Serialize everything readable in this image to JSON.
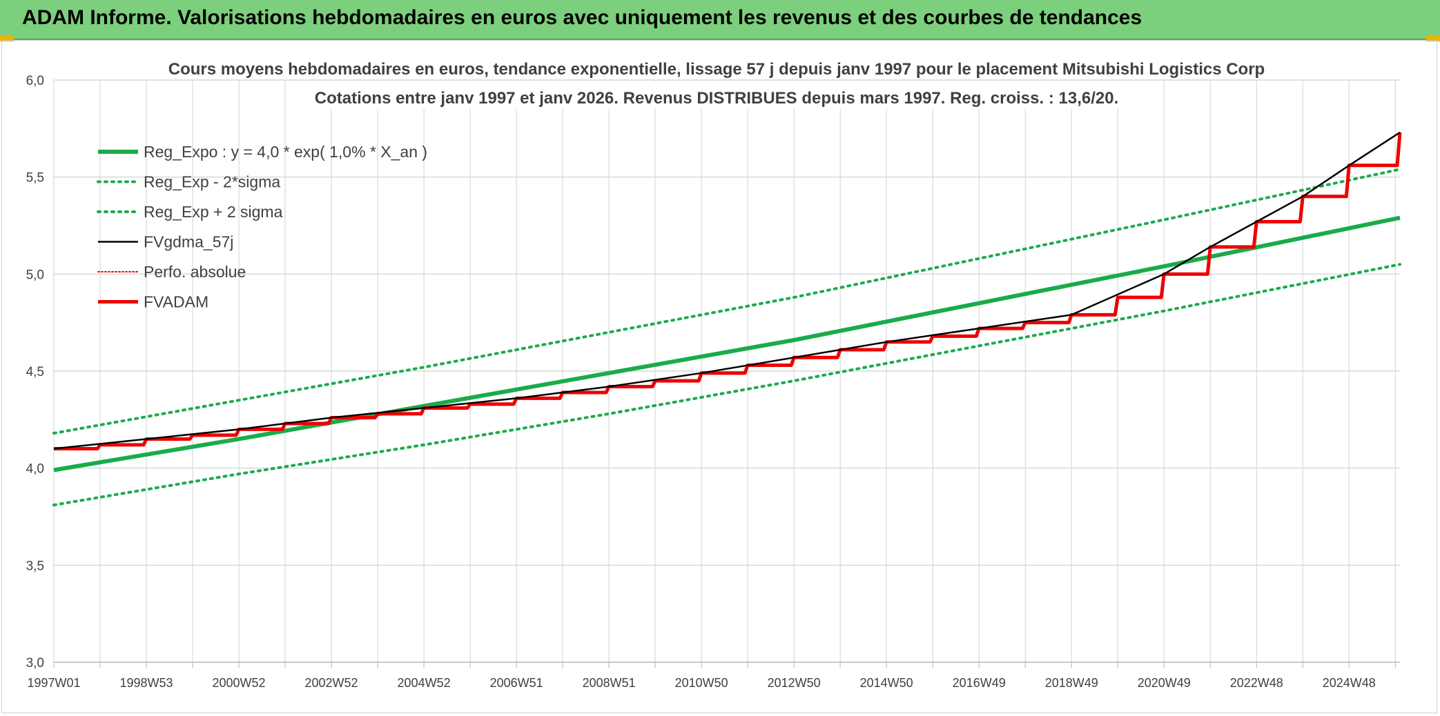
{
  "banner": {
    "title": "ADAM Informe. Valorisations hebdomadaires en euros avec uniquement les revenus et des courbes de tendances"
  },
  "colors": {
    "banner_bg": "#7ccf7c",
    "green": "#1aab4b",
    "red": "#ee0000",
    "black": "#000000",
    "grid": "#d9d9d9",
    "text": "#404040",
    "title": "#404040"
  },
  "chart_data": {
    "type": "line",
    "title_line1": "Cours moyens hebdomadaires en euros, tendance exponentielle, lissage 57 j depuis janv 1997 pour le placement Mitsubishi Logistics Corp",
    "title_line2": "Cotations entre janv 1997 et janv 2026. Revenus DISTRIBUES depuis mars 1997. Reg. croiss. : 13,6/20.",
    "xlabel": "",
    "ylabel": "",
    "ylim": [
      3.0,
      6.0
    ],
    "y_ticks": [
      "3,0",
      "3,5",
      "4,0",
      "4,5",
      "5,0",
      "5,5",
      "6,0"
    ],
    "x_range": [
      1997.0,
      2026.1
    ],
    "x_ticks": [
      {
        "label": "1997W01",
        "x": 1997.0
      },
      {
        "label": "1998W53",
        "x": 1999.0
      },
      {
        "label": "2000W52",
        "x": 2001.0
      },
      {
        "label": "2002W52",
        "x": 2003.0
      },
      {
        "label": "2004W52",
        "x": 2005.0
      },
      {
        "label": "2006W51",
        "x": 2007.0
      },
      {
        "label": "2008W51",
        "x": 2009.0
      },
      {
        "label": "2010W50",
        "x": 2011.0
      },
      {
        "label": "2012W50",
        "x": 2013.0
      },
      {
        "label": "2014W50",
        "x": 2015.0
      },
      {
        "label": "2016W49",
        "x": 2017.0
      },
      {
        "label": "2018W49",
        "x": 2019.0
      },
      {
        "label": "2020W49",
        "x": 2021.0
      },
      {
        "label": "2022W48",
        "x": 2023.0
      },
      {
        "label": "2024W48",
        "x": 2025.0
      }
    ],
    "grid": true,
    "legend_position": "top-left",
    "series": [
      {
        "name": "Reg_Expo : y = 4,0 * exp( 1,0% *  X_an )",
        "style": "solid-thick",
        "color": "#1aab4b",
        "x": [
          1997.0,
          2001.0,
          2005.0,
          2009.0,
          2013.0,
          2017.0,
          2021.0,
          2026.1
        ],
        "y": [
          3.99,
          4.15,
          4.32,
          4.49,
          4.66,
          4.85,
          5.04,
          5.29
        ]
      },
      {
        "name": "Reg_Exp - 2*sigma",
        "style": "dotted",
        "color": "#1aab4b",
        "x": [
          1997.0,
          2001.0,
          2005.0,
          2009.0,
          2013.0,
          2017.0,
          2021.0,
          2026.1
        ],
        "y": [
          3.81,
          3.97,
          4.12,
          4.28,
          4.45,
          4.63,
          4.81,
          5.05
        ]
      },
      {
        "name": "Reg_Exp + 2 sigma",
        "style": "dotted",
        "color": "#1aab4b",
        "x": [
          1997.0,
          2001.0,
          2005.0,
          2009.0,
          2013.0,
          2017.0,
          2021.0,
          2026.1
        ],
        "y": [
          4.18,
          4.35,
          4.52,
          4.7,
          4.88,
          5.08,
          5.28,
          5.54
        ]
      },
      {
        "name": "FVgdma_57j",
        "style": "solid-thin",
        "color": "#000000",
        "x": [
          1997.0,
          1999.0,
          2001.0,
          2003.0,
          2005.0,
          2007.0,
          2009.0,
          2011.0,
          2013.0,
          2015.0,
          2017.0,
          2019.0,
          2021.0,
          2022.0,
          2023.0,
          2024.0,
          2025.0,
          2026.1
        ],
        "y": [
          4.1,
          4.15,
          4.2,
          4.26,
          4.31,
          4.36,
          4.42,
          4.49,
          4.57,
          4.65,
          4.72,
          4.79,
          5.0,
          5.14,
          5.27,
          5.4,
          5.56,
          5.73
        ]
      },
      {
        "name": "Perfo. absolue",
        "style": "dotted-thin",
        "color": "#ee0000",
        "x": [],
        "y": []
      },
      {
        "name": "FVADAM",
        "style": "step",
        "color": "#ee0000",
        "x": [
          1997.0,
          1998.0,
          1999.0,
          2000.0,
          2001.0,
          2002.0,
          2003.0,
          2004.0,
          2005.0,
          2006.0,
          2007.0,
          2008.0,
          2009.0,
          2010.0,
          2011.0,
          2012.0,
          2013.0,
          2014.0,
          2015.0,
          2016.0,
          2017.0,
          2018.0,
          2019.0,
          2020.0,
          2021.0,
          2022.0,
          2023.0,
          2024.0,
          2025.0,
          2026.1
        ],
        "y": [
          4.1,
          4.12,
          4.15,
          4.17,
          4.2,
          4.23,
          4.26,
          4.28,
          4.31,
          4.33,
          4.36,
          4.39,
          4.42,
          4.45,
          4.49,
          4.53,
          4.57,
          4.61,
          4.65,
          4.68,
          4.72,
          4.75,
          4.79,
          4.88,
          5.0,
          5.14,
          5.27,
          5.4,
          5.56,
          5.73
        ]
      }
    ]
  }
}
